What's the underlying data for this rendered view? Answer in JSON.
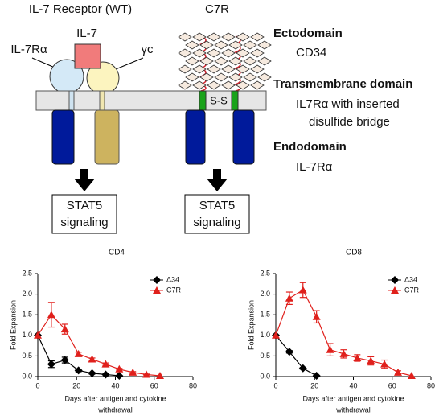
{
  "diagram": {
    "receptors": [
      {
        "title": "IL-7 Receptor (WT)",
        "signal": [
          "STAT5",
          "signaling"
        ]
      },
      {
        "title": "C7R",
        "signal": [
          "STAT5",
          "signaling"
        ],
        "bridge": "S-S"
      }
    ],
    "ligand": "IL-7",
    "chains": [
      "IL-7Rα",
      "γc"
    ],
    "domains": [
      {
        "heading": "Ectodomain",
        "text": [
          "CD34"
        ]
      },
      {
        "heading": "Transmembrane domain",
        "text": [
          "IL7Rα with inserted",
          "disulfide bridge"
        ]
      },
      {
        "heading": "Endodomain",
        "text": [
          "IL-7Rα"
        ]
      }
    ]
  },
  "chart_data": [
    {
      "type": "line",
      "title": "CD4",
      "ylabel": "Fold Expansion",
      "xlabel": [
        "Days after antigen and cytokine",
        "withdrawal"
      ],
      "xlim": [
        0,
        80
      ],
      "xticks": [
        0,
        20,
        40,
        60,
        80
      ],
      "ylim": [
        0,
        2.5
      ],
      "yticks": [
        {
          "value": 0,
          "label": "0.0"
        },
        0.5,
        {
          "value": 1,
          "label": "1.0"
        },
        1.5,
        {
          "value": 2,
          "label": "2.0"
        },
        2.5
      ],
      "legend": "upper right",
      "series": [
        {
          "name": "Δ34",
          "color": "#000000",
          "marker": "diamond",
          "x": [
            0,
            7,
            14,
            21,
            28,
            35,
            42
          ],
          "values": [
            1.0,
            0.3,
            0.4,
            0.15,
            0.08,
            0.05,
            0.02
          ],
          "errors": [
            0,
            0.08,
            0.07,
            0.03,
            0.02,
            0.01,
            0
          ]
        },
        {
          "name": "C7R",
          "color": "#e0201c",
          "marker": "triangle",
          "x": [
            0,
            7,
            14,
            21,
            28,
            35,
            42,
            49,
            56,
            63
          ],
          "values": [
            1.0,
            1.5,
            1.15,
            0.55,
            0.42,
            0.3,
            0.18,
            0.1,
            0.05,
            0.02
          ],
          "errors": [
            0,
            0.3,
            0.12,
            0.04,
            0.03,
            0.03,
            0.02,
            0.02,
            0.01,
            0
          ]
        }
      ]
    },
    {
      "type": "line",
      "title": "CD8",
      "ylabel": "Fold Expansion",
      "xlabel": [
        "Days after antigen and cytokine",
        "withdrawal"
      ],
      "xlim": [
        0,
        80
      ],
      "xticks": [
        0,
        20,
        40,
        60,
        80
      ],
      "ylim": [
        0,
        2.5
      ],
      "yticks": [
        {
          "value": 0,
          "label": "0.0"
        },
        0.5,
        {
          "value": 1,
          "label": "1.0"
        },
        1.5,
        {
          "value": 2,
          "label": "2.0"
        },
        2.5
      ],
      "legend": "upper right",
      "series": [
        {
          "name": "Δ34",
          "color": "#000000",
          "marker": "diamond",
          "x": [
            0,
            7,
            14,
            21
          ],
          "values": [
            1.0,
            0.6,
            0.2,
            0.02
          ],
          "errors": [
            0,
            0.03,
            0.02,
            0
          ]
        },
        {
          "name": "C7R",
          "color": "#e0201c",
          "marker": "triangle",
          "x": [
            0,
            7,
            14,
            21,
            28,
            35,
            42,
            49,
            56,
            63,
            70
          ],
          "values": [
            1.0,
            1.9,
            2.1,
            1.45,
            0.65,
            0.55,
            0.45,
            0.38,
            0.3,
            0.1,
            0.02
          ],
          "errors": [
            0,
            0.15,
            0.18,
            0.15,
            0.15,
            0.1,
            0.08,
            0.1,
            0.1,
            0.04,
            0
          ]
        }
      ]
    }
  ]
}
